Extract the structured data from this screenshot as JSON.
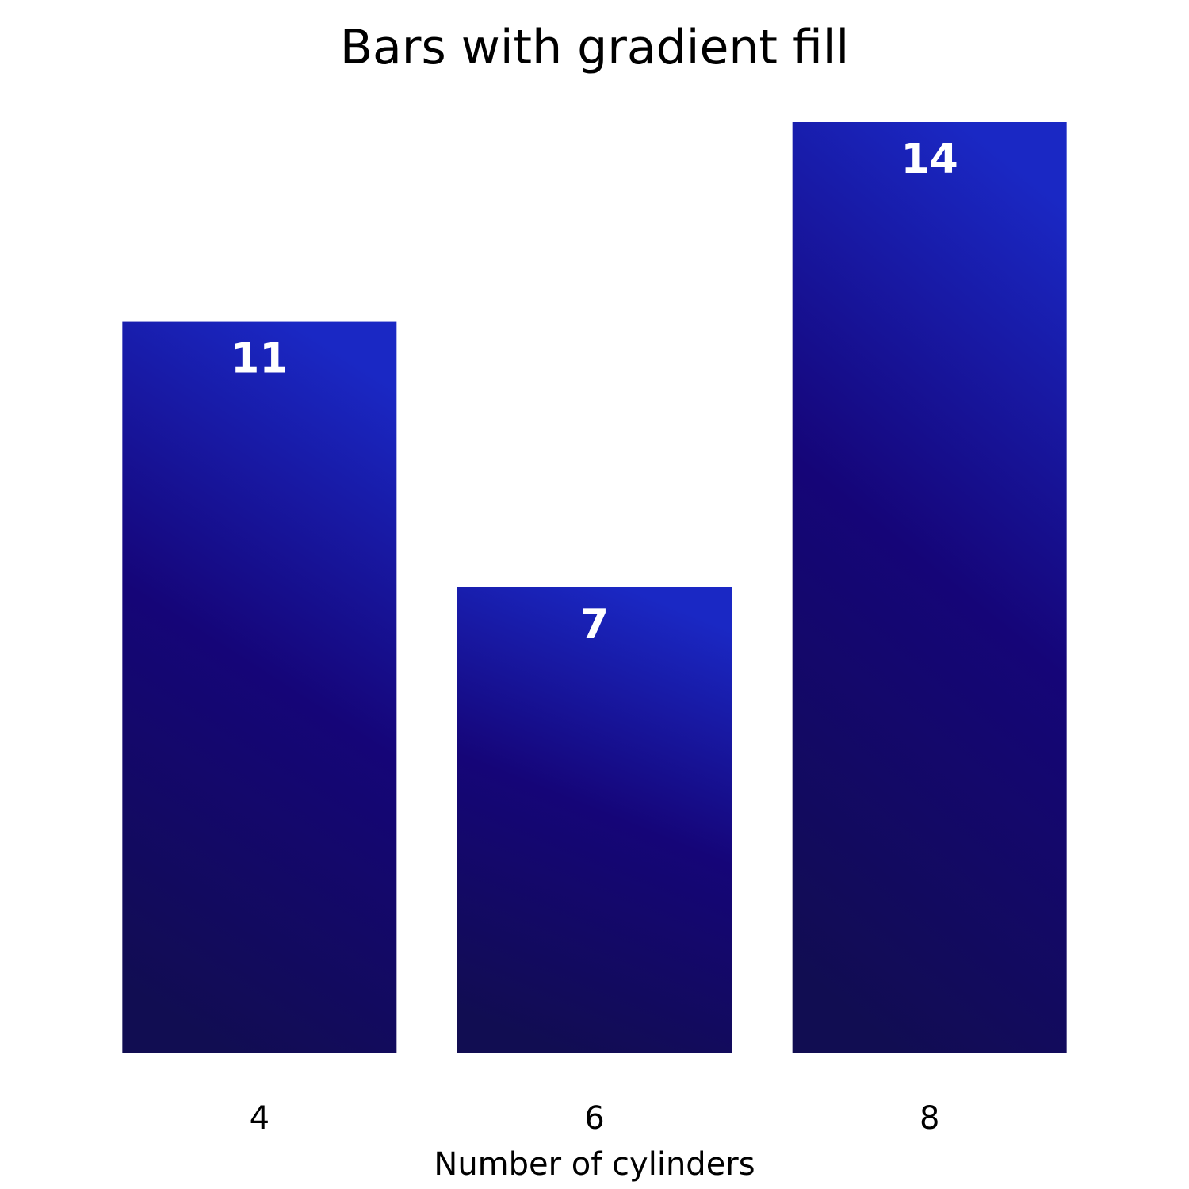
{
  "chart_data": {
    "type": "bar",
    "title": "Bars with gradient fill",
    "xlabel": "Number of cylinders",
    "ylabel": "",
    "categories": [
      "4",
      "6",
      "8"
    ],
    "values": [
      11,
      7,
      14
    ],
    "ylim": [
      0,
      14
    ],
    "grid": false,
    "legend": "none",
    "colors": {
      "gradient_top": "#1a28c4",
      "gradient_middle": "#150578",
      "gradient_bottom": "#110d52",
      "data_label": "#ffffff",
      "text": "#000000"
    }
  }
}
